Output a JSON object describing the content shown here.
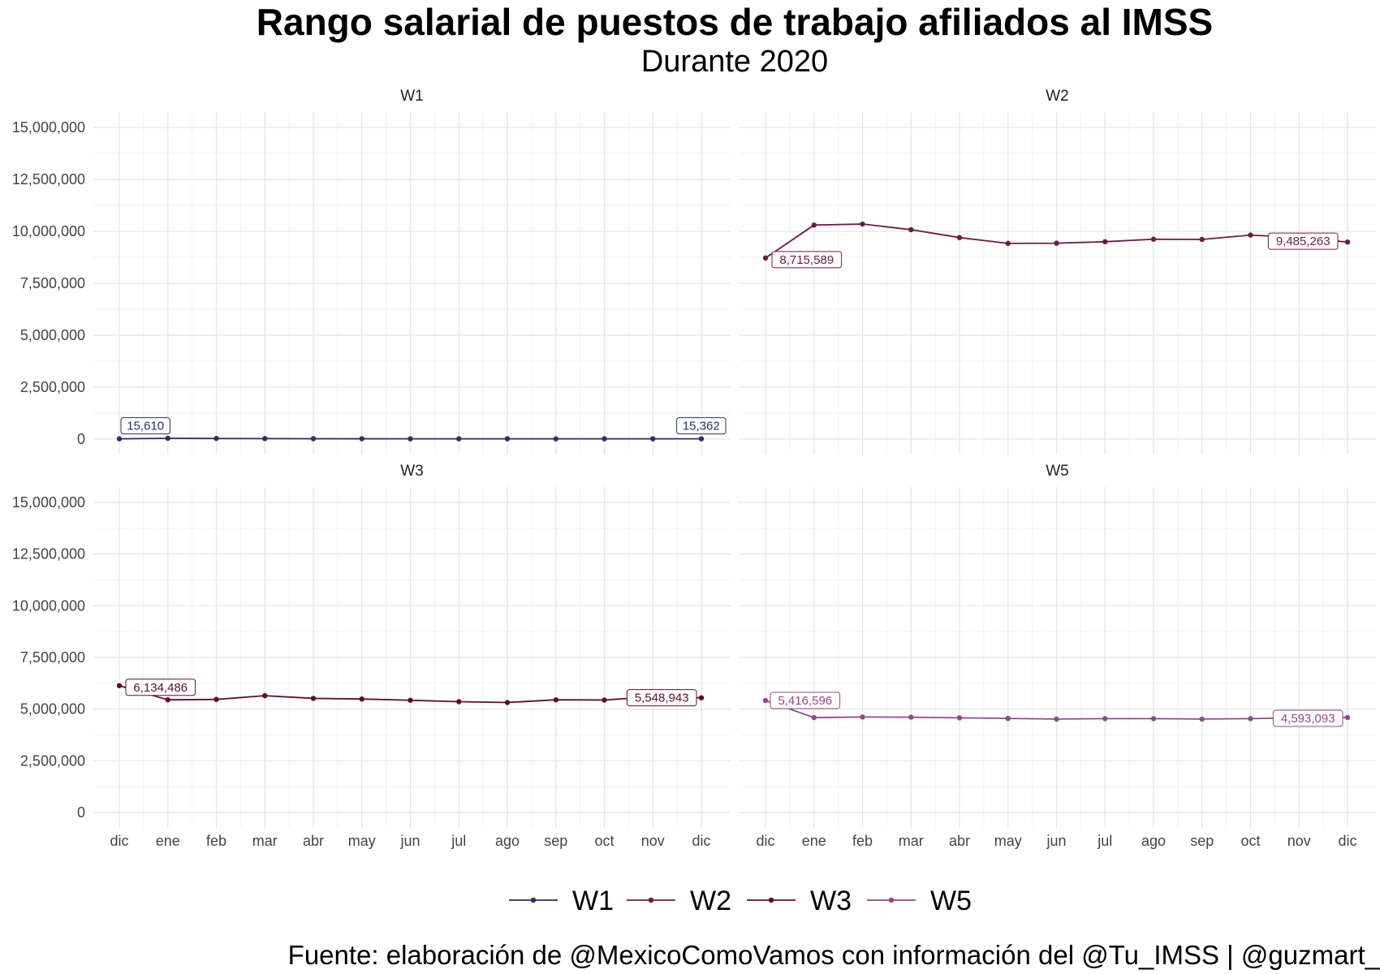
{
  "title": "Rango salarial de puestos de trabajo afiliados al IMSS",
  "subtitle": "Durante 2020",
  "caption": "Fuente: elaboración de @MexicoComoVamos con información del @Tu_IMSS | @guzmart_",
  "chart_data": {
    "type": "line",
    "x_labels": [
      "dic",
      "ene",
      "feb",
      "mar",
      "abr",
      "may",
      "jun",
      "jul",
      "ago",
      "sep",
      "oct",
      "nov",
      "dic"
    ],
    "y_ticks": [
      0,
      2500000,
      5000000,
      7500000,
      10000000,
      12500000,
      15000000
    ],
    "y_tick_labels": [
      "0",
      "2,500,000",
      "5,000,000",
      "7,500,000",
      "10,000,000",
      "12,500,000",
      "15,000,000"
    ],
    "ylim": [
      -1000000,
      15800000
    ],
    "grid": true,
    "legend_position": "bottom",
    "facets": [
      {
        "name": "W1",
        "color": "#2c2f63",
        "values": [
          15610,
          40000,
          30000,
          25000,
          20000,
          18000,
          15000,
          15000,
          15000,
          14000,
          15000,
          14500,
          15362
        ],
        "first_label": "15,610",
        "last_label": "15,362"
      },
      {
        "name": "W2",
        "color": "#6b1b46",
        "values": [
          8715589,
          10300000,
          10350000,
          10080000,
          9700000,
          9420000,
          9430000,
          9500000,
          9620000,
          9610000,
          9820000,
          9700000,
          9485263
        ],
        "first_label": "8,715,589",
        "last_label": "9,485,263"
      },
      {
        "name": "W3",
        "color": "#5b0f30",
        "values": [
          6134486,
          5450000,
          5470000,
          5650000,
          5520000,
          5490000,
          5430000,
          5360000,
          5320000,
          5450000,
          5440000,
          5600000,
          5548943
        ],
        "first_label": "6,134,486",
        "last_label": "5,548,943"
      },
      {
        "name": "W5",
        "color": "#8e4a86",
        "values": [
          5416596,
          4590000,
          4620000,
          4610000,
          4580000,
          4550000,
          4520000,
          4540000,
          4540000,
          4520000,
          4540000,
          4580000,
          4593093
        ],
        "first_label": "5,416,596",
        "last_label": "4,593,093"
      }
    ],
    "legend": [
      "W1",
      "W2",
      "W3",
      "W5"
    ]
  }
}
